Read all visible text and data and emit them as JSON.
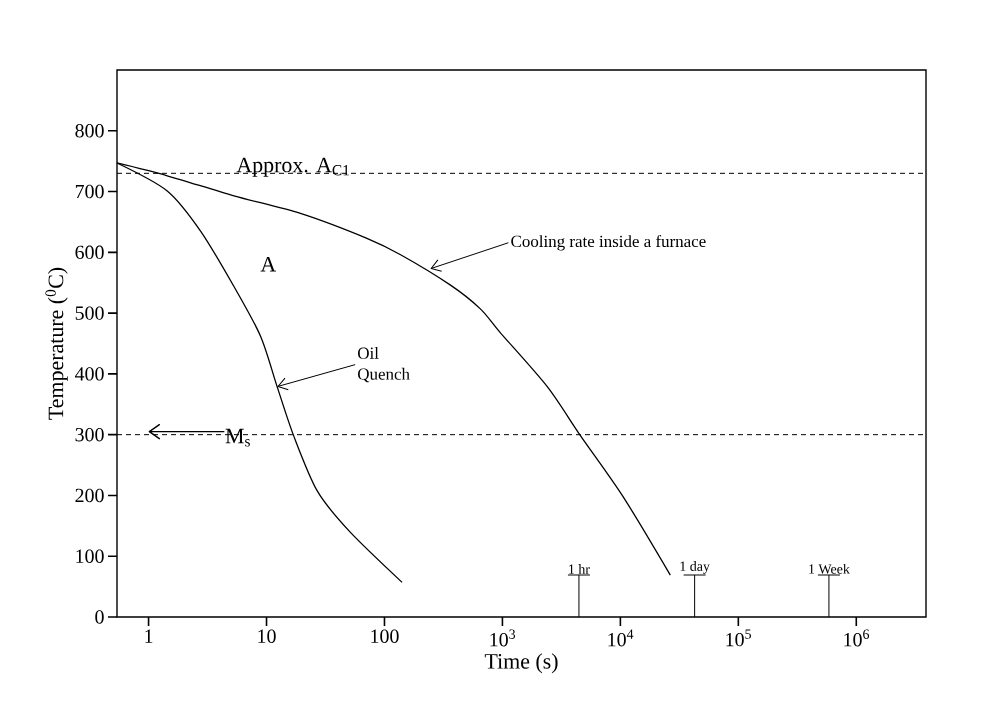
{
  "chart_data": {
    "type": "line",
    "xlabel": "Time (s)",
    "ylabel": "Temperature ($^{0}$C)",
    "log": "x",
    "xlim": [
      0.54,
      3900000
    ],
    "ylim": [
      0,
      900
    ],
    "xticks": [
      1,
      10,
      100,
      {
        "value": 1000,
        "label": "10$^{3}$"
      },
      {
        "value": 10000,
        "label": "10$^{4}$"
      },
      {
        "value": 100000,
        "label": "10$^{5}$"
      },
      {
        "value": 1000000,
        "label": "10$^{6}$"
      }
    ],
    "yticks": [
      0,
      100,
      200,
      300,
      400,
      500,
      600,
      700,
      800
    ],
    "grid": false,
    "legend": false,
    "marker": "none",
    "line_style": "solid",
    "series": [
      {
        "color": "#000000",
        "x": [
          0.54,
          1.44,
          2.76,
          5.25,
          8.9,
          12.3,
          17,
          27,
          51,
          141
        ],
        "values": [
          747,
          701,
          635,
          545,
          462,
          379,
          298,
          207,
          140,
          57
        ]
      },
      {
        "color": "#000000",
        "x": [
          0.54,
          1.44,
          5.3,
          19.4,
          71,
          137,
          363,
          650,
          958,
          2400,
          4600,
          10700,
          26500
        ],
        "values": [
          747,
          726,
          693,
          664,
          623,
          596,
          546,
          507,
          468,
          379,
          298,
          196,
          69
        ]
      }
    ],
    "ref_lines": [
      {
        "axis": "y",
        "value": 730,
        "label": "Approx. A$_{C1}$",
        "line_style": "dashed",
        "color": "#000000"
      },
      {
        "axis": "y",
        "value": 300,
        "label": "M$_{s}$",
        "line_style": "dashed",
        "color": "#000000"
      }
    ],
    "annotations": [
      "A",
      {
        "text": "Oil Quench",
        "x": 12.3,
        "y": 379
      },
      {
        "text": "Cooling rate inside a furnace",
        "x": 245,
        "y": 573
      },
      "1 hr",
      "1 day",
      "1 Week"
    ]
  }
}
